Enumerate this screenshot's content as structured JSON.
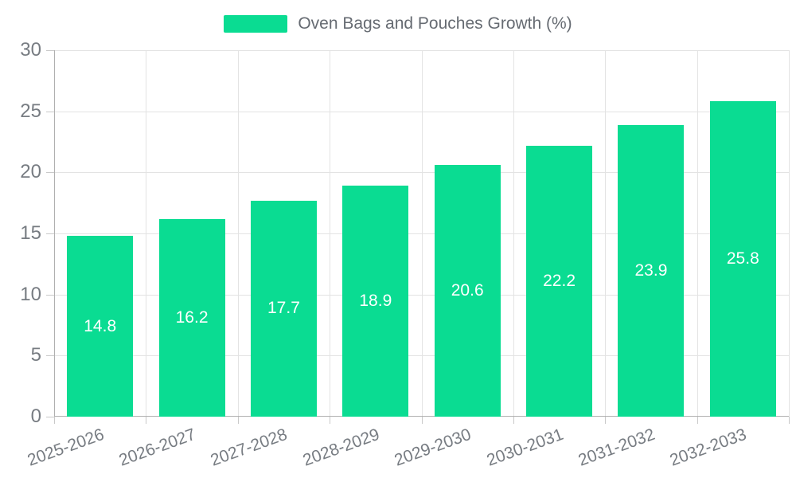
{
  "legend": {
    "label": "Oven Bags and Pouches Growth (%)"
  },
  "chart_data": {
    "type": "bar",
    "title": "",
    "series_name": "Oven Bags and Pouches Growth (%)",
    "categories": [
      "2025-2026",
      "2026-2027",
      "2027-2028",
      "2028-2029",
      "2029-2030",
      "2030-2031",
      "2031-2032",
      "2032-2033"
    ],
    "values": [
      14.8,
      16.2,
      17.7,
      18.9,
      20.6,
      22.2,
      23.9,
      25.8
    ],
    "xlabel": "",
    "ylabel": "",
    "ylim": [
      0,
      30
    ],
    "yticks": [
      0,
      5,
      10,
      15,
      20,
      25,
      30
    ],
    "grid": "on",
    "legend_position": "top-center",
    "value_labels": "inside-middle-white",
    "xlabel_rotation_deg": -20,
    "colors": {
      "bar": "#0adc92",
      "value_text": "#ffffff",
      "axis_line": "#b0b0b0",
      "gridline": "#e3e3e3",
      "tick": "#c9c9c9",
      "axis_text": "#777c82",
      "legend_text": "#666b72",
      "background": "#ffffff"
    }
  }
}
